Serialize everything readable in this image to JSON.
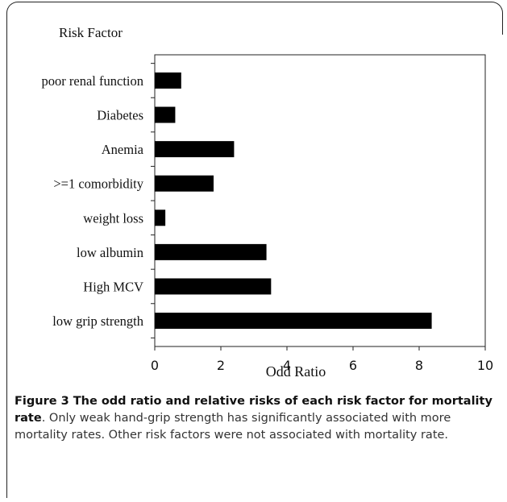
{
  "chart_data": {
    "type": "bar",
    "orientation": "horizontal",
    "title": "Risk Factor",
    "xlabel": "Odd Ratio",
    "ylabel": "",
    "categories": [
      "poor renal function",
      "Diabetes",
      "Anemia",
      ">=1 comorbidity",
      "weight loss",
      "low albumin",
      "High MCV",
      "low grip strength"
    ],
    "values": [
      0.8,
      0.62,
      2.4,
      1.78,
      0.32,
      3.38,
      3.52,
      8.38
    ],
    "xlim": [
      0,
      10
    ],
    "xticks": [
      "0",
      "2",
      "4",
      "6",
      "8",
      "10"
    ],
    "grid": false,
    "bar_color": "#000000"
  },
  "caption": {
    "label": "Figure 3 The odd ratio and relative risks of each risk factor for mortality rate",
    "text": ". Only weak hand-grip strength has significantly associated with more mortality rates. Other risk factors were not associated with mortality rate."
  }
}
